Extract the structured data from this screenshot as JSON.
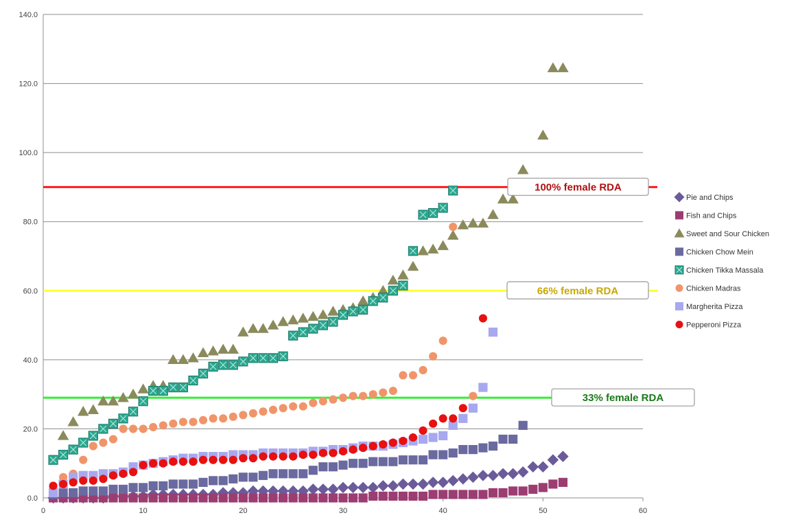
{
  "chart_data": {
    "type": "scatter",
    "xlim": [
      0,
      60
    ],
    "ylim": [
      0,
      140
    ],
    "x_ticks": [
      "0",
      "10",
      "20",
      "30",
      "40",
      "50",
      "60"
    ],
    "y_ticks": [
      "0.0",
      "20.0",
      "40.0",
      "60.0",
      "80.0",
      "100.0",
      "120.0",
      "140.0"
    ],
    "grid": "horizontal",
    "legend_position": "right",
    "reference_lines": [
      {
        "label": "100% female RDA",
        "y": 90,
        "color": "#ff1a1a",
        "text_color": "#b01010"
      },
      {
        "label": "66% female RDA",
        "y": 60,
        "color": "#ffff33",
        "text_color": "#c8a800"
      },
      {
        "label": "33% female RDA",
        "y": 29,
        "color": "#33ee33",
        "text_color": "#1a7a1a"
      }
    ],
    "series": [
      {
        "name": "Pie and Chips",
        "marker": "diamond",
        "color": "#6b5b9a",
        "x": [
          1,
          2,
          3,
          4,
          5,
          6,
          7,
          8,
          9,
          10,
          11,
          12,
          13,
          14,
          15,
          16,
          17,
          18,
          19,
          20,
          21,
          22,
          23,
          24,
          25,
          26,
          27,
          28,
          29,
          30,
          31,
          32,
          33,
          34,
          35,
          36,
          37,
          38,
          39,
          40,
          41,
          42,
          43,
          44,
          45,
          46,
          47,
          48,
          49,
          50,
          51,
          52
        ],
        "y": [
          0,
          0,
          0,
          0,
          0,
          0,
          0.5,
          0.5,
          0.5,
          0.5,
          1,
          1,
          1,
          1,
          1,
          1,
          1,
          1.5,
          1.5,
          1.5,
          2,
          2,
          2,
          2,
          2,
          2,
          2.5,
          2.5,
          2.5,
          3,
          3,
          3,
          3,
          3.5,
          3.5,
          4,
          4,
          4,
          4.5,
          4.5,
          5,
          5.5,
          6,
          6.5,
          6.5,
          7,
          7,
          7.5,
          9,
          9,
          11,
          12
        ]
      },
      {
        "name": "Fish and Chips",
        "marker": "square",
        "color": "#9c3d72",
        "x": [
          1,
          2,
          3,
          4,
          5,
          6,
          7,
          8,
          9,
          10,
          11,
          12,
          13,
          14,
          15,
          16,
          17,
          18,
          19,
          20,
          21,
          22,
          23,
          24,
          25,
          26,
          27,
          28,
          29,
          30,
          31,
          32,
          33,
          34,
          35,
          36,
          37,
          38,
          39,
          40,
          41,
          42,
          43,
          44,
          45,
          46,
          47,
          48,
          49,
          50,
          51,
          52
        ],
        "y": [
          0,
          0,
          0,
          0,
          0,
          0,
          0,
          0,
          0,
          0,
          0,
          0,
          0,
          0,
          0,
          0,
          0,
          0,
          0,
          0,
          0,
          0,
          0,
          0,
          0,
          0,
          0,
          0,
          0,
          0,
          0,
          0,
          0.5,
          0.5,
          0.5,
          0.5,
          0.5,
          0.5,
          1,
          1,
          1,
          1,
          1,
          1,
          1.5,
          1.5,
          2,
          2,
          2.5,
          3,
          4,
          4.5
        ]
      },
      {
        "name": "Sweet and Sour Chicken",
        "marker": "triangle",
        "color": "#8a8a5c",
        "x": [
          2,
          3,
          4,
          5,
          6,
          7,
          8,
          9,
          10,
          11,
          12,
          13,
          14,
          15,
          16,
          17,
          18,
          19,
          20,
          21,
          22,
          23,
          24,
          25,
          26,
          27,
          28,
          29,
          30,
          31,
          32,
          33,
          34,
          35,
          36,
          37,
          38,
          39,
          40,
          41,
          42,
          43,
          44,
          45,
          46,
          47,
          48,
          50,
          51,
          52
        ],
        "y": [
          18,
          22,
          25,
          25.5,
          28,
          28,
          29,
          30,
          31.5,
          32.5,
          32.5,
          40,
          40,
          40.5,
          42,
          42.5,
          43,
          43,
          48,
          49,
          49,
          50,
          51,
          51.5,
          52,
          52.5,
          53,
          54,
          54.5,
          55,
          57,
          58,
          60,
          63,
          64.5,
          67,
          71.5,
          72,
          73,
          76,
          79,
          79.5,
          79.5,
          82,
          86.5,
          86.5,
          95,
          105,
          124.5,
          124.5
        ]
      },
      {
        "name": "Chicken Chow Mein",
        "marker": "square",
        "color": "#6a6aa0",
        "x": [
          1,
          2,
          3,
          4,
          5,
          6,
          7,
          8,
          9,
          10,
          11,
          12,
          13,
          14,
          15,
          16,
          17,
          18,
          19,
          20,
          21,
          22,
          23,
          24,
          25,
          26,
          27,
          28,
          29,
          30,
          31,
          32,
          33,
          34,
          35,
          36,
          37,
          38,
          39,
          40,
          41,
          42,
          43,
          44,
          45,
          46,
          47,
          48
        ],
        "y": [
          1,
          1.5,
          1.5,
          2,
          2,
          2,
          2.5,
          2.5,
          3,
          3,
          3.5,
          3.5,
          4,
          4,
          4,
          4.5,
          5,
          5,
          5.5,
          6,
          6,
          6.5,
          7,
          7,
          7,
          7,
          8,
          9,
          9,
          9.5,
          10,
          10,
          10.5,
          10.5,
          10.5,
          11,
          11,
          11,
          12.5,
          12.5,
          13,
          14,
          14,
          14.5,
          15,
          17,
          17,
          21
        ]
      },
      {
        "name": "Chicken Tikka Massala",
        "marker": "square-x",
        "color": "#2aa890",
        "x": [
          1,
          2,
          3,
          4,
          5,
          6,
          7,
          8,
          9,
          10,
          11,
          12,
          13,
          14,
          15,
          16,
          17,
          18,
          19,
          20,
          21,
          22,
          23,
          24,
          25,
          26,
          27,
          28,
          29,
          30,
          31,
          32,
          33,
          34,
          35,
          36,
          37,
          38,
          39,
          40,
          41
        ],
        "y": [
          11,
          12.5,
          14,
          16,
          18,
          20,
          21.5,
          23,
          25,
          28,
          31,
          31,
          32,
          32,
          34,
          36,
          38,
          38.5,
          38.5,
          39.5,
          40.5,
          40.5,
          40.5,
          41,
          47,
          48,
          49,
          50,
          51,
          53,
          54,
          54.5,
          57,
          58,
          60,
          61.5,
          71.5,
          82,
          82.5,
          84,
          89
        ]
      },
      {
        "name": "Chicken Madras",
        "marker": "circle",
        "color": "#f0956a",
        "x": [
          1,
          2,
          3,
          4,
          5,
          6,
          7,
          8,
          9,
          10,
          11,
          12,
          13,
          14,
          15,
          16,
          17,
          18,
          19,
          20,
          21,
          22,
          23,
          24,
          25,
          26,
          27,
          28,
          29,
          30,
          31,
          32,
          33,
          34,
          35,
          36,
          37,
          38,
          39,
          40,
          41,
          43
        ],
        "y": [
          3,
          6,
          7,
          11,
          15,
          16,
          17,
          20,
          20,
          20,
          20.5,
          21,
          21.5,
          22,
          22,
          22.5,
          23,
          23,
          23.5,
          24,
          24.5,
          25,
          25.5,
          26,
          26.5,
          26.5,
          27.5,
          28,
          28.5,
          29,
          29.5,
          29.5,
          30,
          30.5,
          31,
          35.5,
          35.5,
          37,
          41,
          45.5,
          78.5,
          29.5
        ]
      },
      {
        "name": "Margherita Pizza",
        "marker": "square",
        "color": "#a8a8f0",
        "x": [
          1,
          2,
          3,
          4,
          5,
          6,
          7,
          8,
          9,
          10,
          11,
          12,
          13,
          14,
          15,
          16,
          17,
          18,
          19,
          20,
          21,
          22,
          23,
          24,
          25,
          26,
          27,
          28,
          29,
          30,
          31,
          32,
          33,
          34,
          35,
          36,
          37,
          38,
          39,
          40,
          41,
          42,
          43,
          44,
          45
        ],
        "y": [
          1.5,
          4,
          6,
          6.5,
          6.5,
          7,
          7,
          7.5,
          9,
          9.5,
          10,
          10.5,
          11,
          11.5,
          11.5,
          12,
          12,
          12,
          12.5,
          12.5,
          12.5,
          13,
          13,
          13,
          13,
          13,
          13.5,
          13.5,
          14,
          14,
          14.5,
          15,
          15,
          15,
          15.5,
          16,
          16.5,
          17,
          17.5,
          18,
          21,
          23,
          26,
          32,
          48
        ]
      },
      {
        "name": "Pepperoni Pizza",
        "marker": "circle",
        "color": "#e81010",
        "x": [
          1,
          2,
          3,
          4,
          5,
          6,
          7,
          8,
          9,
          10,
          11,
          12,
          13,
          14,
          15,
          16,
          17,
          18,
          19,
          20,
          21,
          22,
          23,
          24,
          25,
          26,
          27,
          28,
          29,
          30,
          31,
          32,
          33,
          34,
          35,
          36,
          37,
          38,
          39,
          40,
          41,
          42,
          44
        ],
        "y": [
          3.5,
          4,
          4.5,
          5,
          5,
          5.5,
          6.5,
          7,
          7.5,
          9.5,
          10,
          10,
          10.5,
          10.5,
          10.5,
          11,
          11,
          11,
          11,
          11.5,
          11.5,
          12,
          12,
          12,
          12,
          12.5,
          12.5,
          13,
          13,
          13.5,
          14,
          14.5,
          15,
          15.5,
          16,
          16.5,
          17.5,
          19.5,
          21.5,
          23,
          23,
          26,
          52
        ]
      }
    ]
  }
}
